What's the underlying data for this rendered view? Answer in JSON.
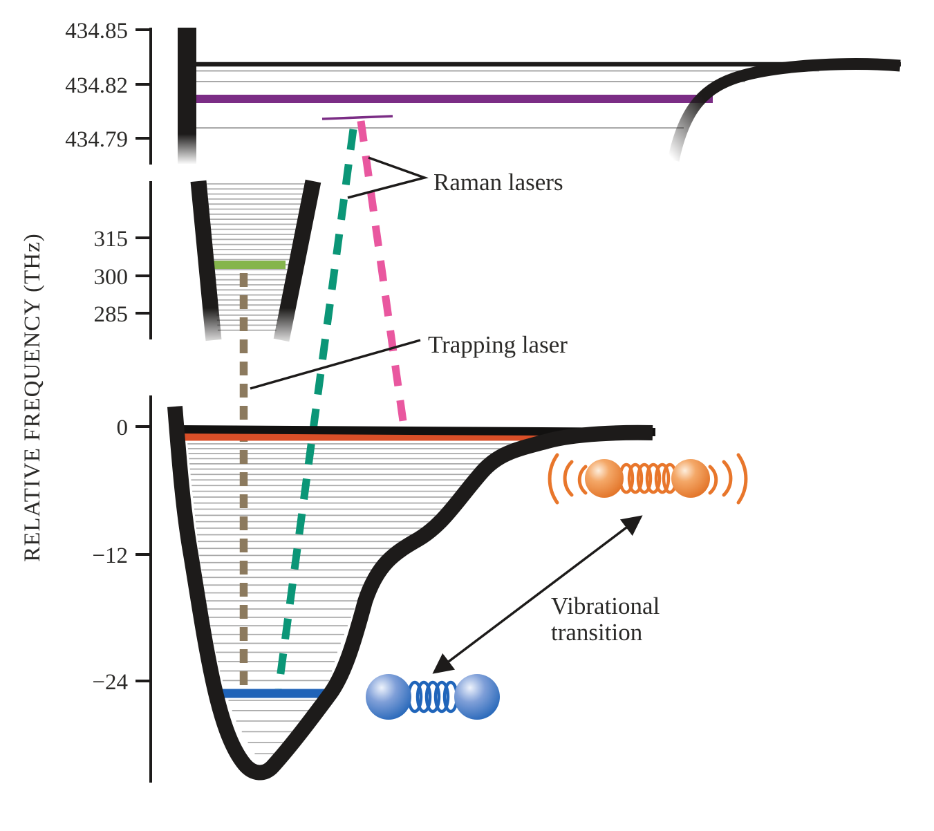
{
  "figure": {
    "y_axis": {
      "title": "RELATIVE FREQUENCY (THz)"
    },
    "ticks": {
      "top": [
        "434.85",
        "434.82",
        "434.79"
      ],
      "middle": [
        "315",
        "300",
        "285"
      ],
      "bottom": [
        "0",
        "−12",
        "−24"
      ]
    },
    "annotations": {
      "raman": "Raman lasers",
      "trapping": "Trapping laser",
      "vibrational_line1": "Vibrational",
      "vibrational_line2": "transition"
    },
    "energy_levels": {
      "excited_state_level_thz": "434.81",
      "intermediate_state_level_thz": "304",
      "ground_state_top_level_thz": "0",
      "ground_state_bound_level_thz": "-25"
    },
    "colors": {
      "ink": "#1d1b1a",
      "level_gray": "#a8a8a8",
      "purple": "#7b2d85",
      "green": "#85b54c",
      "orange_red": "#d94f28",
      "blue_level": "#1f63b8",
      "teal": "#0b9677",
      "pink": "#e9579f",
      "tan": "#8c7a5e",
      "molecule_orange": "#e8762b",
      "molecule_blue": "#2065ba"
    }
  }
}
